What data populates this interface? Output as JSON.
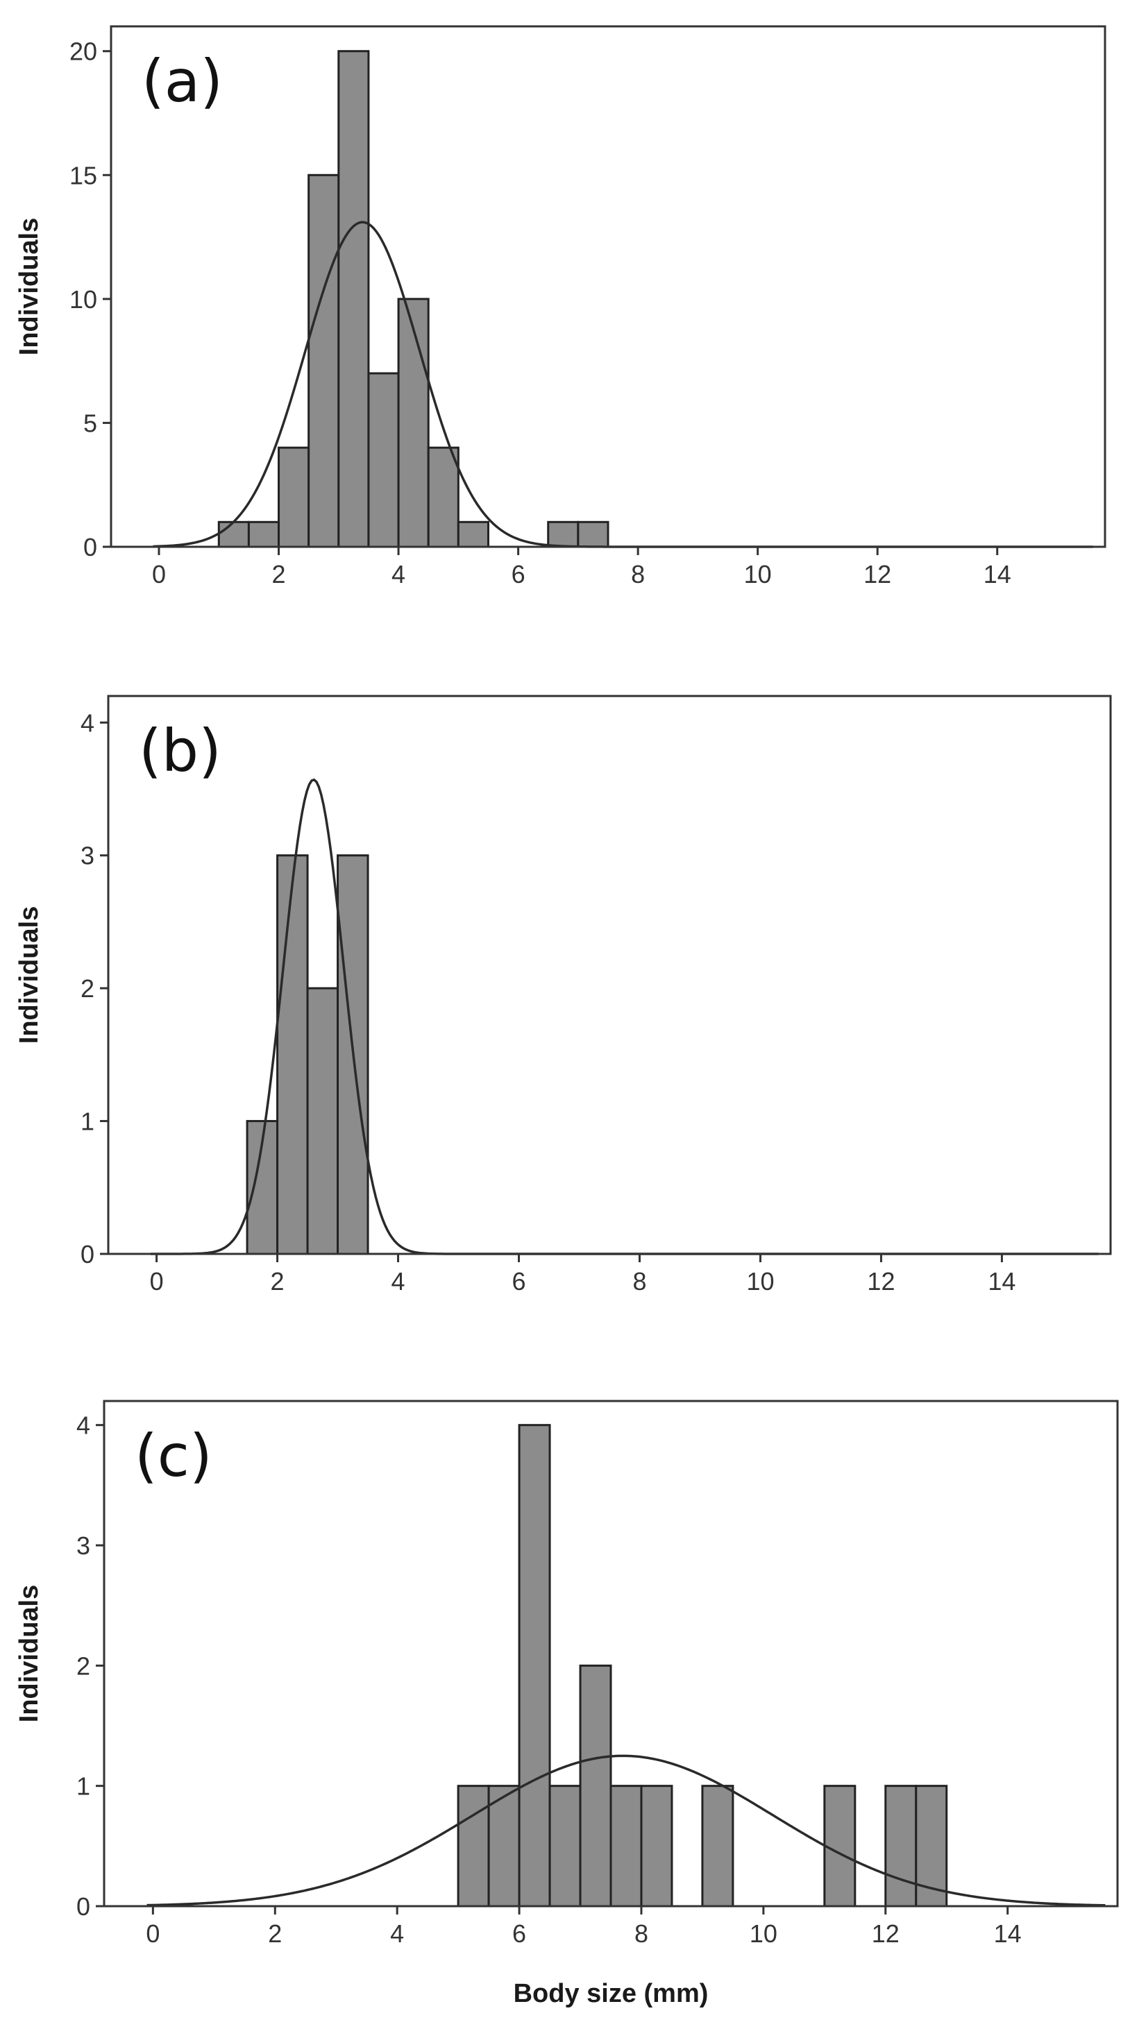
{
  "colors": {
    "bar_fill": "#8c8c8c",
    "bar_stroke": "#222222",
    "curve": "#2a2a2a",
    "frame": "#333333"
  },
  "chart_data": [
    {
      "type": "bar",
      "panel_label": "(a)",
      "ylabel": "Individuals",
      "xlabel": "",
      "xlim": [
        -0.8,
        15.8
      ],
      "ylim": [
        0,
        21
      ],
      "x_ticks": [
        0,
        2,
        4,
        6,
        8,
        10,
        12,
        14
      ],
      "y_ticks": [
        0,
        5,
        10,
        15,
        20
      ],
      "bin_width": 0.5,
      "bins": [
        {
          "start": 1.0,
          "count": 1
        },
        {
          "start": 1.5,
          "count": 1
        },
        {
          "start": 2.0,
          "count": 4
        },
        {
          "start": 2.5,
          "count": 15
        },
        {
          "start": 3.0,
          "count": 20
        },
        {
          "start": 3.5,
          "count": 7
        },
        {
          "start": 4.0,
          "count": 10
        },
        {
          "start": 4.5,
          "count": 4
        },
        {
          "start": 5.0,
          "count": 1
        },
        {
          "start": 6.5,
          "count": 1
        },
        {
          "start": 7.0,
          "count": 1
        }
      ],
      "normal_curve": {
        "mean": 3.4,
        "sd": 0.95,
        "peak": 13.1
      }
    },
    {
      "type": "bar",
      "panel_label": "(b)",
      "ylabel": "Individuals",
      "xlabel": "",
      "xlim": [
        -0.8,
        15.8
      ],
      "ylim": [
        0,
        4.2
      ],
      "x_ticks": [
        0,
        2,
        4,
        6,
        8,
        10,
        12,
        14
      ],
      "y_ticks": [
        0,
        1,
        2,
        3,
        4
      ],
      "bin_width": 0.5,
      "bins": [
        {
          "start": 1.5,
          "count": 1
        },
        {
          "start": 2.0,
          "count": 3
        },
        {
          "start": 2.5,
          "count": 2
        },
        {
          "start": 3.0,
          "count": 3
        }
      ],
      "normal_curve": {
        "mean": 2.6,
        "sd": 0.5,
        "peak": 3.57
      }
    },
    {
      "type": "bar",
      "panel_label": "(c)",
      "ylabel": "Individuals",
      "xlabel": "Body size (mm)",
      "xlim": [
        -0.8,
        15.8
      ],
      "ylim": [
        0,
        4.2
      ],
      "x_ticks": [
        0,
        2,
        4,
        6,
        8,
        10,
        12,
        14
      ],
      "y_ticks": [
        0,
        1,
        2,
        3,
        4
      ],
      "bin_width": 0.5,
      "bins": [
        {
          "start": 5.0,
          "count": 1
        },
        {
          "start": 5.5,
          "count": 1
        },
        {
          "start": 6.0,
          "count": 4
        },
        {
          "start": 6.5,
          "count": 1
        },
        {
          "start": 7.0,
          "count": 2
        },
        {
          "start": 7.5,
          "count": 1
        },
        {
          "start": 8.0,
          "count": 1
        },
        {
          "start": 9.0,
          "count": 1
        },
        {
          "start": 11.0,
          "count": 1
        },
        {
          "start": 12.0,
          "count": 1
        },
        {
          "start": 12.5,
          "count": 1
        }
      ],
      "normal_curve": {
        "mean": 7.7,
        "sd": 2.45,
        "peak": 1.25
      }
    }
  ]
}
